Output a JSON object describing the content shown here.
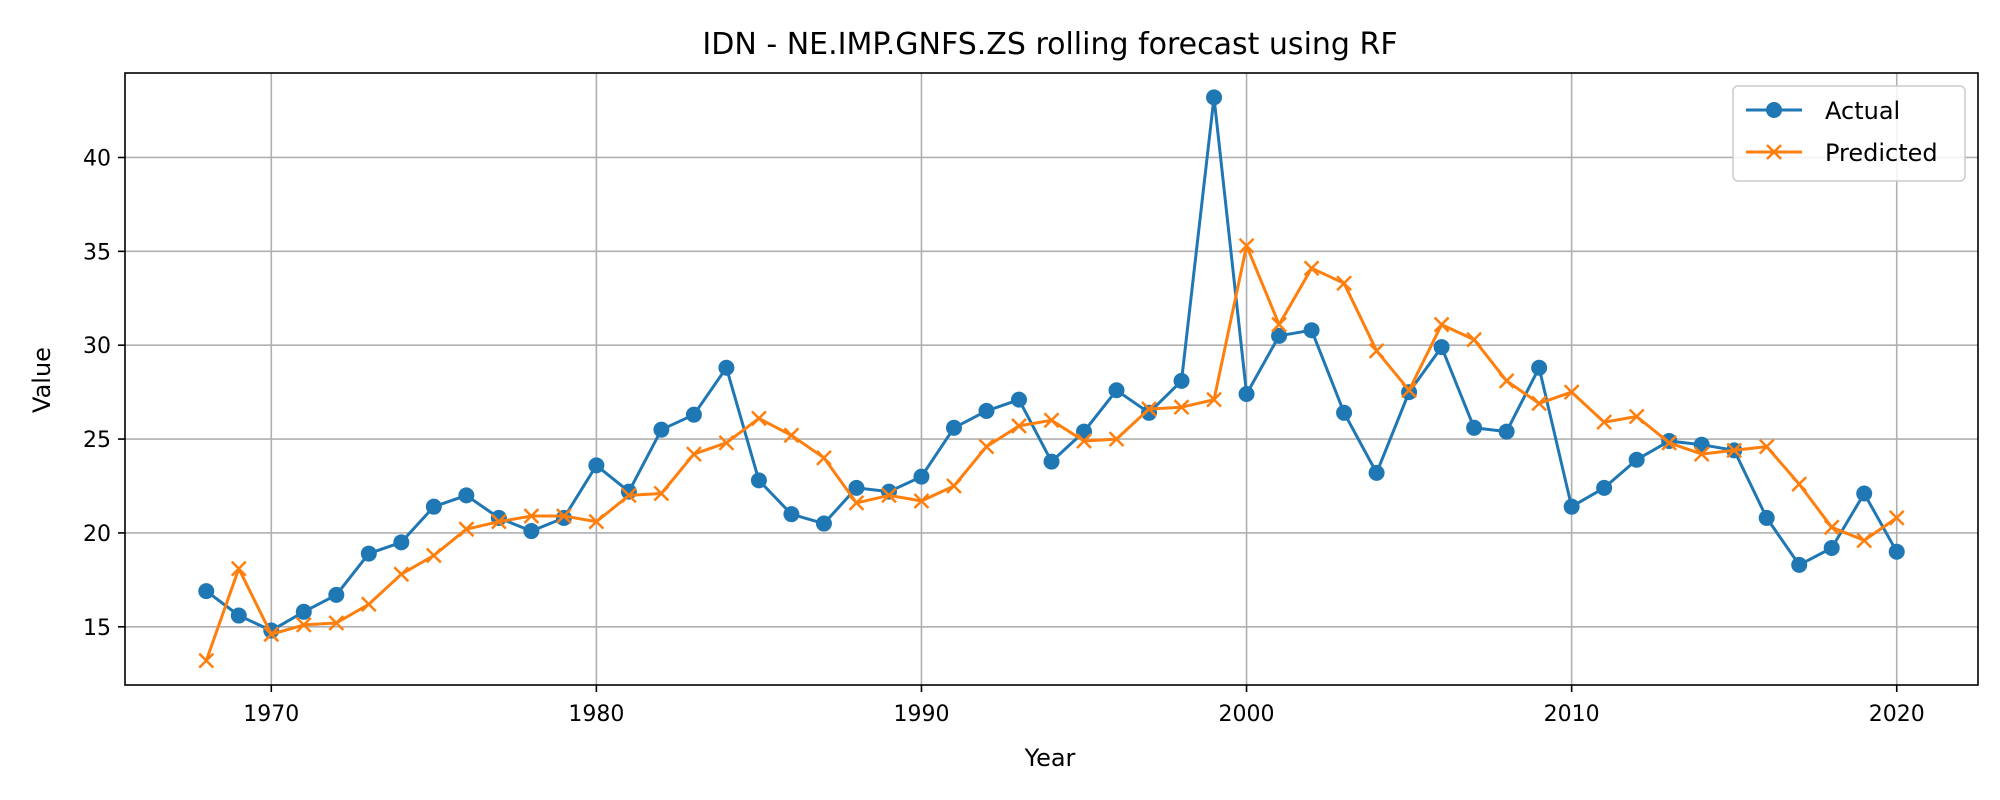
{
  "chart_data": {
    "type": "line",
    "title": "IDN - NE.IMP.GNFS.ZS rolling forecast using RF",
    "xlabel": "Year",
    "ylabel": "Value",
    "xlim": [
      1965.5,
      2022.5
    ],
    "ylim": [
      11.9,
      44.5
    ],
    "xticks": [
      1970,
      1980,
      1990,
      2000,
      2010,
      2020
    ],
    "yticks": [
      15,
      20,
      25,
      30,
      35,
      40
    ],
    "grid": true,
    "legend": {
      "placement": "top-right",
      "entries": [
        "Actual",
        "Predicted"
      ]
    },
    "x": [
      1968,
      1969,
      1970,
      1971,
      1972,
      1973,
      1974,
      1975,
      1976,
      1977,
      1978,
      1979,
      1980,
      1981,
      1982,
      1983,
      1984,
      1985,
      1986,
      1987,
      1988,
      1989,
      1990,
      1991,
      1992,
      1993,
      1994,
      1995,
      1996,
      1997,
      1998,
      1999,
      2000,
      2001,
      2002,
      2003,
      2004,
      2005,
      2006,
      2007,
      2008,
      2009,
      2010,
      2011,
      2012,
      2013,
      2014,
      2015,
      2016,
      2017,
      2018,
      2019,
      2020
    ],
    "series": [
      {
        "name": "Actual",
        "color": "#1f77b4",
        "marker": "circle",
        "values": [
          16.9,
          15.6,
          14.8,
          15.8,
          16.7,
          18.9,
          19.5,
          21.4,
          22.0,
          20.8,
          20.1,
          20.8,
          23.6,
          22.2,
          25.5,
          26.3,
          28.8,
          22.8,
          21.0,
          20.5,
          22.4,
          22.2,
          23.0,
          25.6,
          26.5,
          27.1,
          23.8,
          25.4,
          27.6,
          26.4,
          28.1,
          43.2,
          27.4,
          30.5,
          30.8,
          26.4,
          23.2,
          27.5,
          29.9,
          25.6,
          25.4,
          28.8,
          21.4,
          22.4,
          23.9,
          24.9,
          24.7,
          24.4,
          20.8,
          18.3,
          19.2,
          22.1,
          19.0
        ]
      },
      {
        "name": "Predicted",
        "color": "#ff7f0e",
        "marker": "x",
        "values": [
          13.2,
          18.1,
          14.6,
          15.1,
          15.2,
          16.2,
          17.8,
          18.8,
          20.2,
          20.6,
          20.9,
          20.9,
          20.6,
          22.0,
          22.1,
          24.2,
          24.8,
          26.1,
          25.2,
          24.0,
          21.6,
          22.0,
          21.7,
          22.5,
          24.6,
          25.7,
          26.0,
          24.9,
          25.0,
          26.6,
          26.7,
          27.1,
          35.3,
          31.1,
          34.1,
          33.3,
          29.7,
          27.6,
          31.1,
          30.3,
          28.1,
          26.9,
          27.5,
          25.9,
          26.2,
          24.8,
          24.2,
          24.4,
          24.6,
          22.6,
          20.3,
          19.6,
          20.8
        ]
      }
    ]
  }
}
